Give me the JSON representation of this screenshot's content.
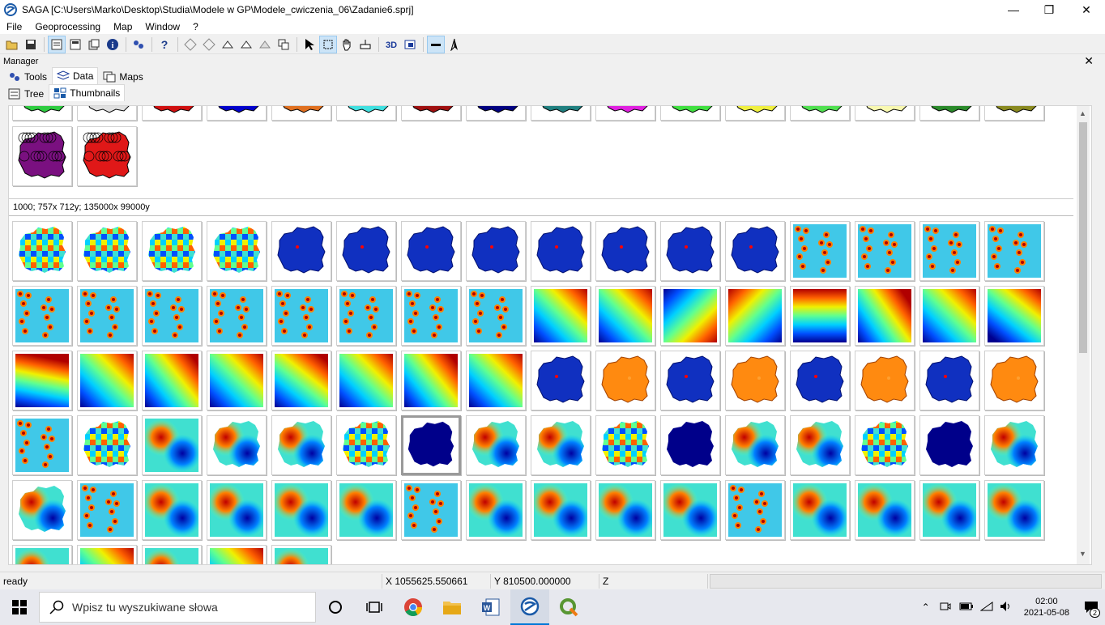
{
  "window": {
    "title": "SAGA [C:\\Users\\Marko\\Desktop\\Studia\\Modele w GP\\Modele_cwiczenia_06\\Zadanie6.sprj]"
  },
  "menu": [
    "File",
    "Geoprocessing",
    "Map",
    "Window",
    "?"
  ],
  "manager": {
    "title": "Manager",
    "tabs": [
      "Tools",
      "Data",
      "Maps"
    ],
    "subtabs": [
      "Tree",
      "Thumbnails"
    ],
    "info": "1000; 757x 712y; 135000x 99000y"
  },
  "status": {
    "state": "ready",
    "x": "X 1055625.550661",
    "y": "Y 810500.000000",
    "z": "Z"
  },
  "taskbar": {
    "search_placeholder": "Wpisz tu wyszukiwane słowa",
    "time": "02:00",
    "date": "2021-05-08",
    "notifications": "2"
  },
  "colors": {
    "accent": "#0078d7",
    "shape_colors": [
      "#2ecc40",
      "#e0e0e0",
      "#d01010",
      "#0000cc",
      "#e07020",
      "#40e0e0",
      "#a01010",
      "#000080",
      "#208080",
      "#e020e0",
      "#40e040",
      "#f0f040",
      "#50e050",
      "#f8f8b0",
      "#2a8a2a",
      "#8a8a20"
    ]
  }
}
